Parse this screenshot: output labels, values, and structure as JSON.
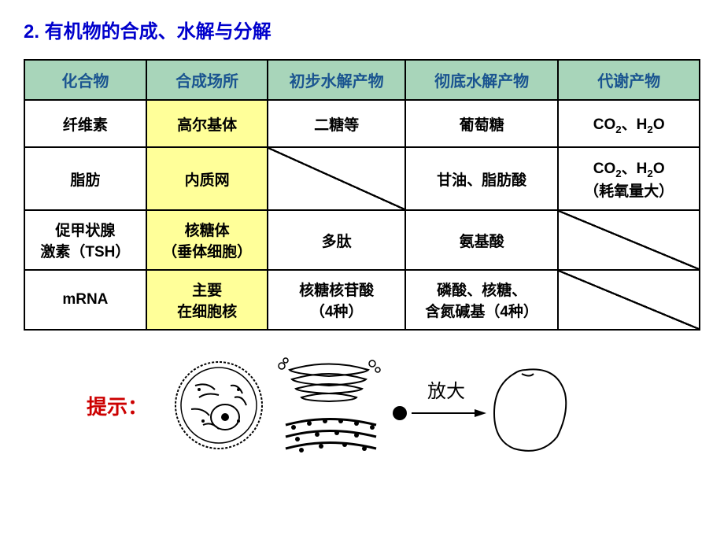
{
  "title": "2. 有机物的合成、水解与分解",
  "headers": {
    "c1": "化合物",
    "c2": "合成场所",
    "c3": "初步水解产物",
    "c4": "彻底水解产物",
    "c5": "代谢产物"
  },
  "rows": [
    {
      "compound": "纤维素",
      "site": "高尔基体",
      "initial": "二糖等",
      "final": "葡萄糖",
      "metabolic_html": "CO<sub>2</sub>、H<sub>2</sub>O"
    },
    {
      "compound": "脂肪",
      "site": "内质网",
      "initial": "",
      "final": "甘油、脂肪酸",
      "metabolic_html": "CO<sub>2</sub>、H<sub>2</sub>O<br>（耗氧量大）"
    },
    {
      "compound_html": "促甲状腺<br>激素（TSH）",
      "site_html": "核糖体<br>（垂体细胞）",
      "initial": "多肽",
      "final": "氨基酸",
      "metabolic_html": ""
    },
    {
      "compound": "mRNA",
      "site_html": "主要<br>在细胞核",
      "initial_html": "核糖核苷酸<br>（4种）",
      "final_html": "磷酸、核糖、<br>含氮碱基（4种）",
      "metabolic_html": ""
    }
  ],
  "hint_label": "提示：",
  "arrow_label": "放大",
  "colors": {
    "title": "#0000cc",
    "header_bg": "#a8d5ba",
    "header_text": "#1a5490",
    "highlight_bg": "#ffff99",
    "hint": "#cc0000",
    "border": "#000000"
  }
}
